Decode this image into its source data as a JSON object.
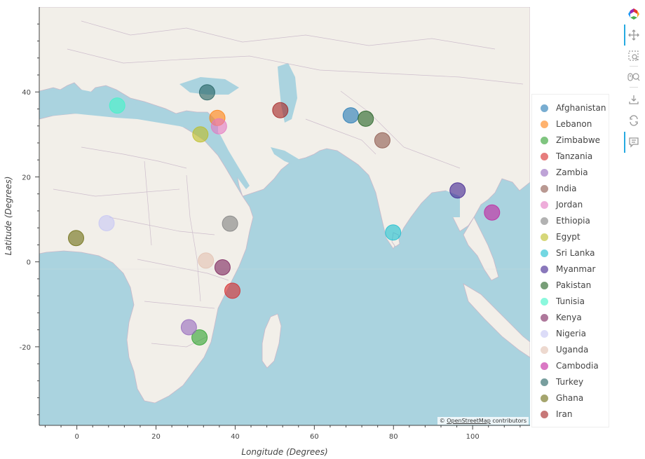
{
  "map": {
    "attribution_prefix": "© ",
    "attribution_link": "OpenStreetMap",
    "attribution_suffix": " contributors",
    "x_axis_title": "Longitude (Degrees)",
    "y_axis_title": "Latitude (Degrees)",
    "x_range": [
      -9.5,
      114.5
    ],
    "y_range": [
      -38.5,
      60
    ],
    "x_ticks": [
      0,
      20,
      40,
      60,
      80,
      100
    ],
    "y_ticks": [
      40,
      20,
      0,
      -20
    ]
  },
  "legend": {
    "items": [
      {
        "label": "Afghanistan",
        "color": "#1f77b4"
      },
      {
        "label": "Lebanon",
        "color": "#ff7f0e"
      },
      {
        "label": "Zimbabwe",
        "color": "#2ca02c"
      },
      {
        "label": "Tanzania",
        "color": "#d62728"
      },
      {
        "label": "Zambia",
        "color": "#9467bd"
      },
      {
        "label": "India",
        "color": "#8c564b"
      },
      {
        "label": "Jordan",
        "color": "#e377c2"
      },
      {
        "label": "Ethiopia",
        "color": "#7f7f7f"
      },
      {
        "label": "Egypt",
        "color": "#bcbd22"
      },
      {
        "label": "Sri Lanka",
        "color": "#17becf"
      },
      {
        "label": "Myanmar",
        "color": "#3d1f8f"
      },
      {
        "label": "Pakistan",
        "color": "#1f5f1f"
      },
      {
        "label": "Tunisia",
        "color": "#3ff5c8"
      },
      {
        "label": "Kenya",
        "color": "#7a1f5a"
      },
      {
        "label": "Nigeria",
        "color": "#c6c6f5"
      },
      {
        "label": "Uganda",
        "color": "#e2c0b0"
      },
      {
        "label": "Cambodia",
        "color": "#c21f9e"
      },
      {
        "label": "Turkey",
        "color": "#1f5f5f"
      },
      {
        "label": "Ghana",
        "color": "#6b6b0f"
      },
      {
        "label": "Iran",
        "color": "#a31f1f"
      }
    ]
  },
  "points": [
    {
      "country": "Afghanistan",
      "lon": 69.2,
      "lat": 34.5,
      "size": "small"
    },
    {
      "country": "Lebanon",
      "lon": 35.5,
      "lat": 33.9,
      "size": "small"
    },
    {
      "country": "Zimbabwe",
      "lon": 31.0,
      "lat": -17.8,
      "size": "small"
    },
    {
      "country": "Tanzania",
      "lon": 39.3,
      "lat": -6.8,
      "size": "small"
    },
    {
      "country": "Zambia",
      "lon": 28.3,
      "lat": -15.4,
      "size": "small"
    },
    {
      "country": "India",
      "lon": 77.2,
      "lat": 28.6,
      "size": "small"
    },
    {
      "country": "Jordan",
      "lon": 35.9,
      "lat": 31.9,
      "size": "small"
    },
    {
      "country": "Ethiopia",
      "lon": 38.7,
      "lat": 9.0,
      "size": "small"
    },
    {
      "country": "Egypt",
      "lon": 31.2,
      "lat": 30.0,
      "size": "small"
    },
    {
      "country": "Sri Lanka",
      "lon": 79.9,
      "lat": 6.9,
      "size": "small"
    },
    {
      "country": "Myanmar",
      "lon": 96.2,
      "lat": 16.8,
      "size": "small"
    },
    {
      "country": "Pakistan",
      "lon": 73.0,
      "lat": 33.7,
      "size": "small"
    },
    {
      "country": "Tunisia",
      "lon": 10.2,
      "lat": 36.8,
      "size": "small"
    },
    {
      "country": "Kenya",
      "lon": 36.8,
      "lat": -1.3,
      "size": "small"
    },
    {
      "country": "Nigeria",
      "lon": 7.5,
      "lat": 9.1,
      "size": "small"
    },
    {
      "country": "Uganda",
      "lon": 32.6,
      "lat": 0.3,
      "size": "small"
    },
    {
      "country": "Cambodia",
      "lon": 104.9,
      "lat": 11.6,
      "size": "small"
    },
    {
      "country": "Turkey",
      "lon": 32.9,
      "lat": 39.9,
      "size": "small"
    },
    {
      "country": "Ghana",
      "lon": -0.2,
      "lat": 5.6,
      "size": "small"
    },
    {
      "country": "Iran",
      "lon": 51.4,
      "lat": 35.7,
      "size": "small"
    }
  ],
  "toolbar": {
    "logo_icon": "bokeh-logo-icon",
    "tools": [
      {
        "name": "pan-tool-icon",
        "active": true
      },
      {
        "name": "box-zoom-tool-icon",
        "active": false
      },
      {
        "name": "wheel-zoom-tool-icon",
        "active": false
      },
      {
        "name": "save-tool-icon",
        "active": false
      },
      {
        "name": "reset-tool-icon",
        "active": false
      },
      {
        "name": "hover-tool-icon",
        "active": true
      }
    ]
  }
}
